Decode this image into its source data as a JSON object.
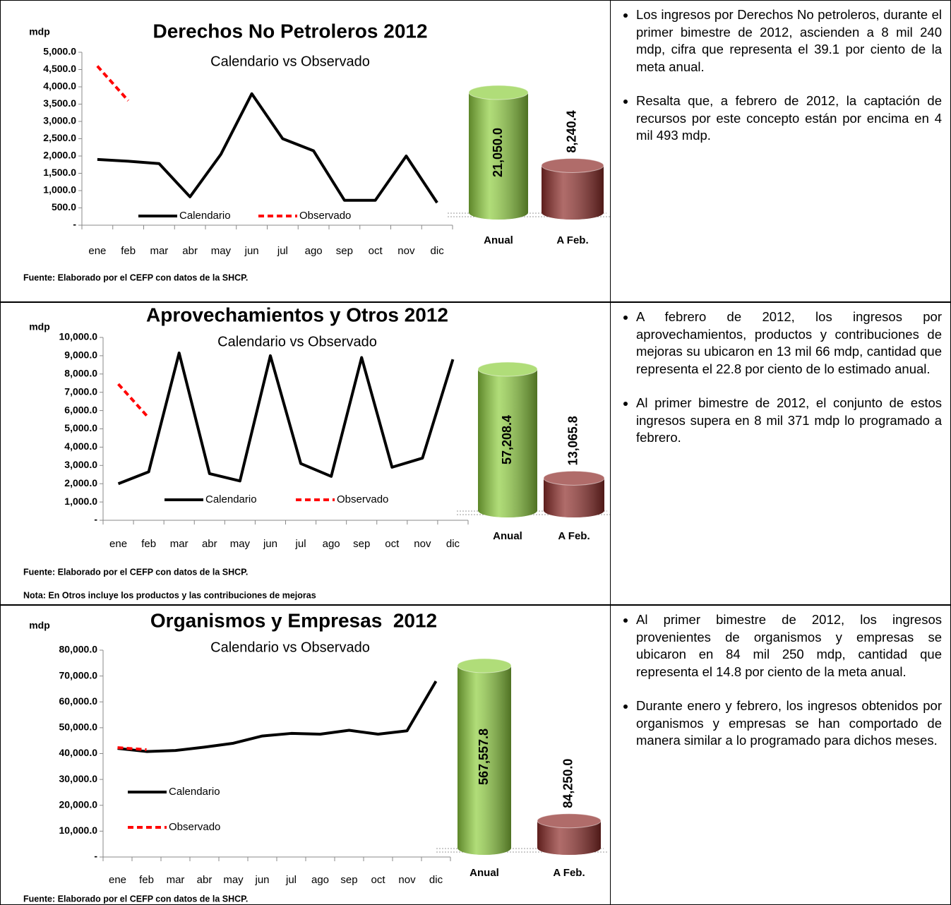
{
  "chart_data": [
    {
      "type": "line",
      "title": "Derechos No Petroleros 2012",
      "subtitle": "Calendario vs Observado",
      "y_label": "mdp",
      "categories": [
        "ene",
        "feb",
        "mar",
        "abr",
        "may",
        "jun",
        "jul",
        "ago",
        "sep",
        "oct",
        "nov",
        "dic"
      ],
      "series": [
        {
          "name": "Calendario",
          "color": "#000000",
          "dashed": false,
          "values": [
            1900,
            1850,
            1780,
            820,
            2050,
            3800,
            2500,
            2150,
            720,
            720,
            2000,
            650
          ]
        },
        {
          "name": "Observado",
          "color": "#ff0000",
          "dashed": true,
          "values": [
            4600,
            3600,
            null,
            null,
            null,
            null,
            null,
            null,
            null,
            null,
            null,
            null
          ]
        }
      ],
      "ylim": [
        0,
        5000
      ],
      "yticks": [
        {
          "value": 0,
          "label": "-"
        },
        {
          "value": 500,
          "label": "500.0"
        },
        {
          "value": 1000,
          "label": "1,000.0"
        },
        {
          "value": 1500,
          "label": "1,500.0"
        },
        {
          "value": 2000,
          "label": "2,000.0"
        },
        {
          "value": 2500,
          "label": "2,500.0"
        },
        {
          "value": 3000,
          "label": "3,000.0"
        },
        {
          "value": 3500,
          "label": "3,500.0"
        },
        {
          "value": 4000,
          "label": "4,000.0"
        },
        {
          "value": 4500,
          "label": "4,500.0"
        },
        {
          "value": 5000,
          "label": "5,000.0"
        }
      ]
    },
    {
      "type": "bar",
      "categories": [
        "Anual",
        "A Feb."
      ],
      "values": [
        21050.0,
        8240.4
      ],
      "value_labels": [
        "21,050.0",
        "8,240.4"
      ],
      "colors": [
        "#8fce3f",
        "#8e2d2a"
      ]
    },
    {
      "type": "line",
      "title": "Aprovechamientos y Otros 2012",
      "subtitle": "Calendario vs Observado",
      "y_label": "mdp",
      "categories": [
        "ene",
        "feb",
        "mar",
        "abr",
        "may",
        "jun",
        "jul",
        "ago",
        "sep",
        "oct",
        "nov",
        "dic"
      ],
      "series": [
        {
          "name": "Calendario",
          "color": "#000000",
          "dashed": false,
          "values": [
            2000,
            2650,
            9150,
            2550,
            2150,
            9000,
            3100,
            2400,
            8900,
            2900,
            3400,
            8800
          ]
        },
        {
          "name": "Observado",
          "color": "#ff0000",
          "dashed": true,
          "values": [
            7450,
            5600,
            null,
            null,
            null,
            null,
            null,
            null,
            null,
            null,
            null,
            null
          ]
        }
      ],
      "ylim": [
        0,
        10000
      ],
      "yticks": [
        {
          "value": 0,
          "label": "-"
        },
        {
          "value": 1000,
          "label": "1,000.0"
        },
        {
          "value": 2000,
          "label": "2,000.0"
        },
        {
          "value": 3000,
          "label": "3,000.0"
        },
        {
          "value": 4000,
          "label": "4,000.0"
        },
        {
          "value": 5000,
          "label": "5,000.0"
        },
        {
          "value": 6000,
          "label": "6,000.0"
        },
        {
          "value": 7000,
          "label": "7,000.0"
        },
        {
          "value": 8000,
          "label": "8,000.0"
        },
        {
          "value": 9000,
          "label": "9,000.0"
        },
        {
          "value": 10000,
          "label": "10,000.0"
        }
      ]
    },
    {
      "type": "bar",
      "categories": [
        "Anual",
        "A Feb."
      ],
      "values": [
        57208.4,
        13065.8
      ],
      "value_labels": [
        "57,208.4",
        "13,065.8"
      ],
      "colors": [
        "#8fce3f",
        "#8e2d2a"
      ]
    },
    {
      "type": "line",
      "title": "Organismos y Empresas  2012",
      "subtitle": "Calendario vs Observado",
      "y_label": "mdp",
      "categories": [
        "ene",
        "feb",
        "mar",
        "abr",
        "may",
        "jun",
        "jul",
        "ago",
        "sep",
        "oct",
        "nov",
        "dic"
      ],
      "series": [
        {
          "name": "Calendario",
          "color": "#000000",
          "dashed": false,
          "values": [
            42000,
            40800,
            41200,
            42500,
            44000,
            46800,
            47800,
            47500,
            49000,
            47500,
            48800,
            68000
          ]
        },
        {
          "name": "Observado",
          "color": "#ff0000",
          "dashed": true,
          "values": [
            42300,
            41500,
            null,
            null,
            null,
            null,
            null,
            null,
            null,
            null,
            null,
            null
          ]
        }
      ],
      "ylim": [
        0,
        80000
      ],
      "yticks": [
        {
          "value": 0,
          "label": "-"
        },
        {
          "value": 10000,
          "label": "10,000.0"
        },
        {
          "value": 20000,
          "label": "20,000.0"
        },
        {
          "value": 30000,
          "label": "30,000.0"
        },
        {
          "value": 40000,
          "label": "40,000.0"
        },
        {
          "value": 50000,
          "label": "50,000.0"
        },
        {
          "value": 60000,
          "label": "60,000.0"
        },
        {
          "value": 70000,
          "label": "70,000.0"
        },
        {
          "value": 80000,
          "label": "80,000.0"
        }
      ]
    },
    {
      "type": "bar",
      "categories": [
        "Anual",
        "A Feb."
      ],
      "values": [
        567557.8,
        84250.0
      ],
      "value_labels": [
        "567,557.8",
        "84,250.0"
      ],
      "colors": [
        "#8fce3f",
        "#8e2d2a"
      ]
    }
  ],
  "panels": [
    {
      "source": "Fuente: Elaborado por el CEFP con datos de la SHCP.",
      "bullets": [
        "Los ingresos por Derechos No petroleros, durante el primer bimestre de 2012, ascienden a 8 mil 240 mdp, cifra que representa el 39.1 por ciento de la meta anual.",
        "Resalta que, a febrero de 2012, la captación de recursos por este concepto están por encima en 4 mil 493 mdp."
      ]
    },
    {
      "source": "Fuente: Elaborado por el CEFP con datos de la SHCP.",
      "note": "Nota: En Otros incluye los productos y las contribuciones de mejoras",
      "bullets": [
        "A febrero de 2012, los ingresos por aprovechamientos, productos y contribuciones de mejoras su ubicaron en 13 mil 66 mdp, cantidad que representa el 22.8 por ciento de lo estimado anual.",
        "Al primer bimestre de 2012, el conjunto de estos ingresos supera en 8 mil 371 mdp lo programado a febrero."
      ]
    },
    {
      "source": "Fuente: Elaborado por el CEFP con datos de la SHCP.",
      "bullets": [
        "Al primer bimestre de 2012, los ingresos provenientes de organismos y empresas se ubicaron en 84 mil 250 mdp, cantidad que representa el 14.8 por ciento de la meta anual.",
        "Durante enero y febrero, los ingresos obtenidos por organismos y empresas se han comportado de manera similar a lo programado para dichos meses."
      ]
    }
  ]
}
